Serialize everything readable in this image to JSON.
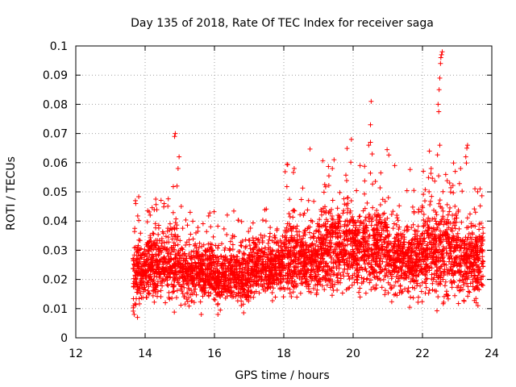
{
  "chart_data": {
    "type": "scatter",
    "title": "Day 135 of 2018, Rate Of TEC Index for receiver saga",
    "xlabel": "GPS time / hours",
    "ylabel": "ROTI / TECUs",
    "xlim": [
      12,
      24
    ],
    "ylim": [
      0,
      0.1
    ],
    "x_ticks": [
      12,
      14,
      16,
      18,
      20,
      22,
      24
    ],
    "x_tick_labels": [
      "12",
      "14",
      "16",
      "18",
      "20",
      "22",
      "24"
    ],
    "y_ticks": [
      0,
      0.01,
      0.02,
      0.03,
      0.04,
      0.05,
      0.06,
      0.07,
      0.08,
      0.09,
      0.1
    ],
    "y_tick_labels": [
      "0",
      "0.01",
      "0.02",
      "0.03",
      "0.04",
      "0.05",
      "0.06",
      "0.07",
      "0.08",
      "0.09",
      "0.1"
    ],
    "grid": true,
    "marker": "+",
    "marker_color": "#ff0000",
    "series": [
      {
        "name": "ROTI",
        "x_range": [
          13.65,
          23.75
        ],
        "segments": [
          {
            "from": 13.65,
            "to": 14.0,
            "mean": 0.022,
            "spread": 0.009
          },
          {
            "from": 14.0,
            "to": 15.0,
            "mean": 0.025,
            "spread": 0.009
          },
          {
            "from": 15.0,
            "to": 16.0,
            "mean": 0.023,
            "spread": 0.008
          },
          {
            "from": 16.0,
            "to": 17.0,
            "mean": 0.021,
            "spread": 0.007
          },
          {
            "from": 17.0,
            "to": 18.0,
            "mean": 0.024,
            "spread": 0.008
          },
          {
            "from": 18.0,
            "to": 19.0,
            "mean": 0.027,
            "spread": 0.01
          },
          {
            "from": 19.0,
            "to": 20.0,
            "mean": 0.03,
            "spread": 0.011
          },
          {
            "from": 20.0,
            "to": 21.0,
            "mean": 0.031,
            "spread": 0.011
          },
          {
            "from": 21.0,
            "to": 22.0,
            "mean": 0.027,
            "spread": 0.009
          },
          {
            "from": 22.0,
            "to": 23.0,
            "mean": 0.03,
            "spread": 0.012
          },
          {
            "from": 23.0,
            "to": 23.75,
            "mean": 0.027,
            "spread": 0.01
          }
        ],
        "outliers": [
          {
            "x": 13.72,
            "y": 0.047
          },
          {
            "x": 13.73,
            "y": 0.046
          },
          {
            "x": 14.55,
            "y": 0.046
          },
          {
            "x": 14.85,
            "y": 0.069
          },
          {
            "x": 14.87,
            "y": 0.07
          },
          {
            "x": 14.95,
            "y": 0.058
          },
          {
            "x": 14.98,
            "y": 0.062
          },
          {
            "x": 14.92,
            "y": 0.052
          },
          {
            "x": 15.3,
            "y": 0.043
          },
          {
            "x": 18.3,
            "y": 0.058
          },
          {
            "x": 19.4,
            "y": 0.058
          },
          {
            "x": 19.45,
            "y": 0.061
          },
          {
            "x": 19.95,
            "y": 0.068
          },
          {
            "x": 20.2,
            "y": 0.059
          },
          {
            "x": 20.45,
            "y": 0.066
          },
          {
            "x": 20.5,
            "y": 0.067
          },
          {
            "x": 20.5,
            "y": 0.073
          },
          {
            "x": 20.52,
            "y": 0.081
          },
          {
            "x": 20.55,
            "y": 0.063
          },
          {
            "x": 21.2,
            "y": 0.059
          },
          {
            "x": 22.2,
            "y": 0.064
          },
          {
            "x": 22.25,
            "y": 0.058
          },
          {
            "x": 22.45,
            "y": 0.08
          },
          {
            "x": 22.48,
            "y": 0.085
          },
          {
            "x": 22.5,
            "y": 0.089
          },
          {
            "x": 22.52,
            "y": 0.094
          },
          {
            "x": 22.53,
            "y": 0.096
          },
          {
            "x": 22.55,
            "y": 0.097
          },
          {
            "x": 22.57,
            "y": 0.098
          },
          {
            "x": 22.5,
            "y": 0.066
          },
          {
            "x": 23.1,
            "y": 0.058
          },
          {
            "x": 23.25,
            "y": 0.062
          },
          {
            "x": 23.28,
            "y": 0.065
          },
          {
            "x": 23.3,
            "y": 0.066
          },
          {
            "x": 23.55,
            "y": 0.012
          },
          {
            "x": 23.6,
            "y": 0.011
          },
          {
            "x": 22.4,
            "y": 0.016
          },
          {
            "x": 20.2,
            "y": 0.014
          },
          {
            "x": 13.78,
            "y": 0.007
          },
          {
            "x": 15.62,
            "y": 0.008
          },
          {
            "x": 16.1,
            "y": 0.008
          }
        ]
      }
    ]
  }
}
